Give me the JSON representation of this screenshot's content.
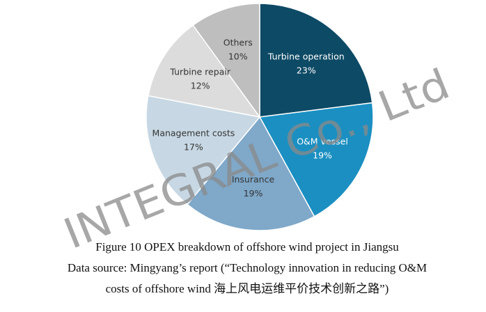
{
  "chart_data": {
    "type": "pie",
    "categories": [
      "Turbine operation",
      "O&M vessel",
      "Insurance",
      "Management costs",
      "Turbine repair",
      "Others"
    ],
    "values": [
      23,
      19,
      19,
      17,
      12,
      10
    ],
    "value_labels": [
      "23%",
      "19%",
      "19%",
      "17%",
      "12%",
      "10%"
    ],
    "colors": [
      "#0d4a65",
      "#1b8fc1",
      "#7fa8c9",
      "#c7d8e4",
      "#dcdcdc",
      "#bebebe"
    ],
    "label_colors": [
      "#ffffff",
      "#ffffff",
      "#333333",
      "#333333",
      "#333333",
      "#333333"
    ],
    "caption": [
      "Figure 10 OPEX breakdown of offshore wind project in Jiangsu",
      "Data source: Mingyang’s report (“Technology innovation in reducing O&M",
      "costs of offshore wind  海上风电运维平价技术创新之路”)"
    ],
    "watermark": "INTEGRAL Co., Ltd"
  }
}
